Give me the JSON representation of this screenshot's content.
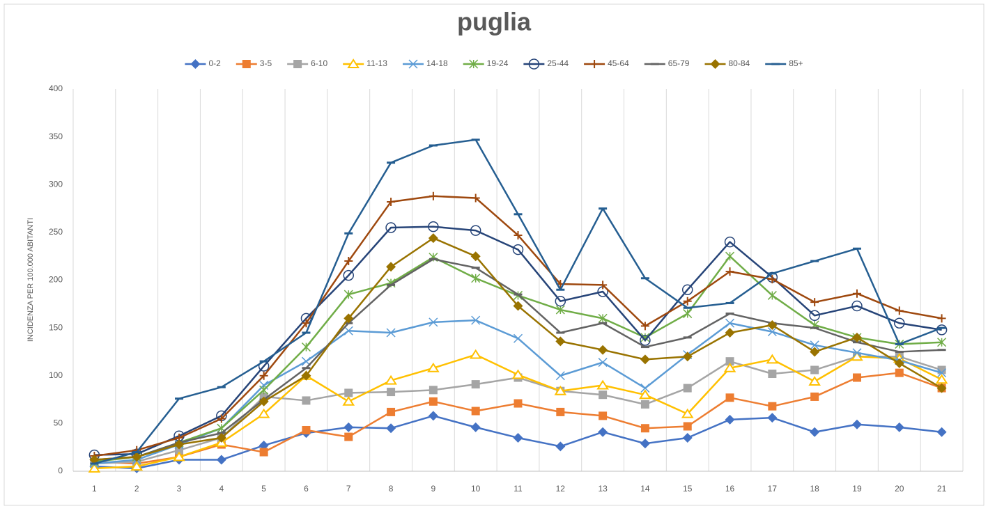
{
  "chart_data": {
    "type": "line",
    "title": "puglia",
    "y_label": "INCIDENZA PER 100.000 ABITANTI",
    "categories": [
      "1",
      "2",
      "3",
      "4",
      "5",
      "6",
      "7",
      "8",
      "9",
      "10",
      "11",
      "12",
      "13",
      "14",
      "15",
      "16",
      "17",
      "18",
      "19",
      "20",
      "21"
    ],
    "ylim": [
      0,
      400
    ],
    "yticks": [
      0,
      50,
      100,
      150,
      200,
      250,
      300,
      350,
      400
    ],
    "grid": true,
    "legend": "top",
    "series": [
      {
        "name": "0-2",
        "color": "#4472c4",
        "marker": "diamond",
        "values": [
          5,
          3,
          12,
          12,
          27,
          40,
          46,
          45,
          58,
          46,
          35,
          26,
          41,
          29,
          35,
          54,
          56,
          41,
          49,
          46,
          41
        ]
      },
      {
        "name": "3-5",
        "color": "#ed7d31",
        "marker": "square",
        "values": [
          10,
          8,
          15,
          28,
          20,
          43,
          36,
          62,
          73,
          63,
          71,
          62,
          58,
          45,
          47,
          77,
          68,
          78,
          98,
          103,
          87
        ]
      },
      {
        "name": "6-10",
        "color": "#a5a5a5",
        "marker": "square",
        "values": [
          8,
          10,
          22,
          35,
          78,
          74,
          82,
          83,
          85,
          91,
          98,
          84,
          80,
          70,
          87,
          115,
          102,
          106,
          120,
          120,
          106
        ]
      },
      {
        "name": "11-13",
        "color": "#ffc000",
        "marker": "triangle",
        "values": [
          3,
          5,
          15,
          30,
          60,
          100,
          73,
          95,
          108,
          122,
          101,
          84,
          90,
          80,
          60,
          108,
          117,
          94,
          120,
          118,
          96
        ]
      },
      {
        "name": "14-18",
        "color": "#5b9bd5",
        "marker": "x",
        "values": [
          8,
          12,
          28,
          45,
          90,
          115,
          147,
          145,
          156,
          158,
          139,
          100,
          114,
          87,
          122,
          155,
          146,
          132,
          124,
          116,
          103
        ]
      },
      {
        "name": "19-24",
        "color": "#70ad47",
        "marker": "star",
        "values": [
          10,
          15,
          30,
          45,
          85,
          130,
          185,
          197,
          224,
          202,
          184,
          169,
          160,
          140,
          165,
          225,
          184,
          153,
          140,
          133,
          135
        ]
      },
      {
        "name": "25-44",
        "color": "#264478",
        "marker": "circle",
        "values": [
          17,
          18,
          37,
          58,
          110,
          160,
          205,
          255,
          256,
          252,
          232,
          178,
          188,
          137,
          190,
          240,
          203,
          163,
          173,
          155,
          148
        ]
      },
      {
        "name": "45-64",
        "color": "#9e480e",
        "marker": "plus",
        "values": [
          16,
          22,
          35,
          55,
          100,
          155,
          220,
          282,
          288,
          286,
          247,
          196,
          195,
          152,
          178,
          209,
          201,
          177,
          186,
          168,
          160
        ]
      },
      {
        "name": "65-79",
        "color": "#636363",
        "marker": "dash",
        "values": [
          12,
          15,
          30,
          40,
          75,
          108,
          155,
          195,
          222,
          213,
          185,
          145,
          155,
          130,
          140,
          165,
          155,
          150,
          135,
          125,
          127
        ]
      },
      {
        "name": "80-84",
        "color": "#997300",
        "marker": "diamond",
        "values": [
          12,
          15,
          28,
          35,
          73,
          100,
          160,
          214,
          244,
          225,
          173,
          136,
          127,
          117,
          120,
          145,
          153,
          125,
          140,
          113,
          87
        ]
      },
      {
        "name": "85+",
        "color": "#255e91",
        "marker": "dash",
        "values": [
          8,
          20,
          76,
          88,
          115,
          145,
          249,
          323,
          341,
          347,
          269,
          190,
          275,
          202,
          171,
          176,
          207,
          220,
          233,
          133,
          150
        ]
      }
    ]
  }
}
